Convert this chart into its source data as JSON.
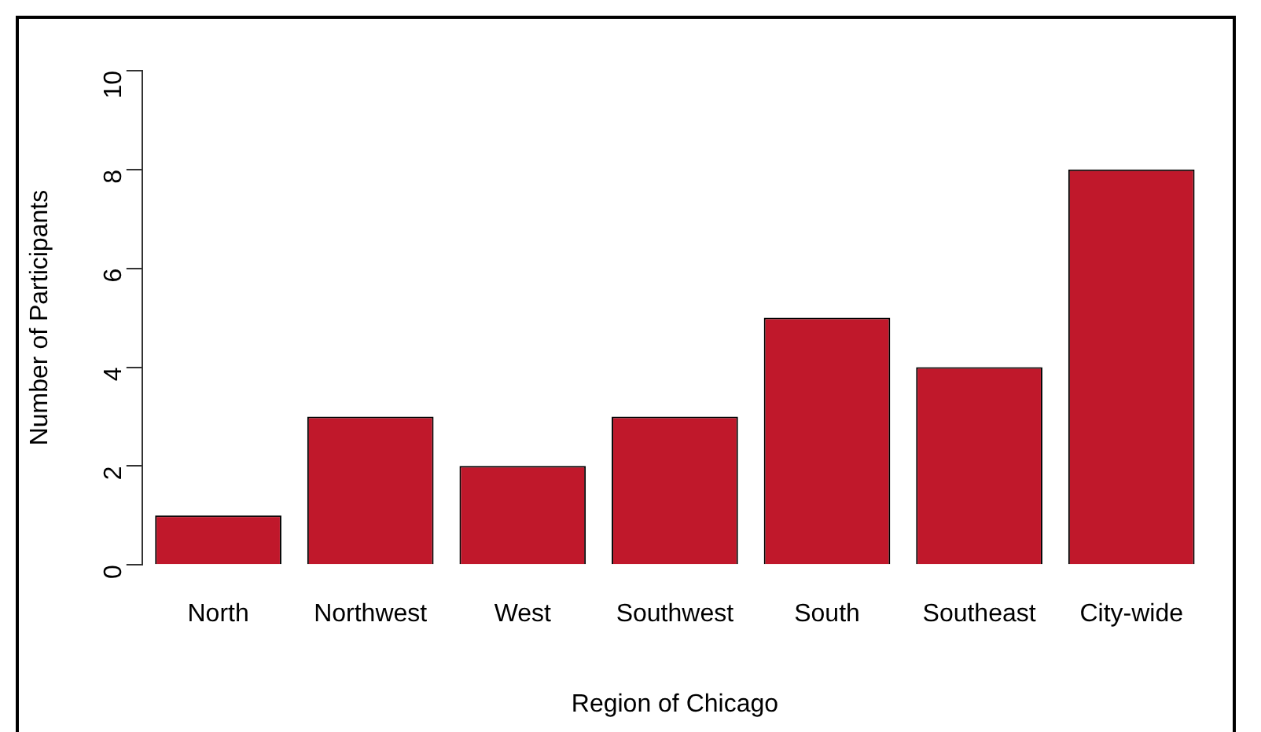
{
  "chart_data": {
    "type": "bar",
    "xlabel": "Region of Chicago",
    "ylabel": "Number of Participants",
    "categories": [
      "North",
      "Northwest",
      "West",
      "Southwest",
      "South",
      "Southeast",
      "City-wide"
    ],
    "values": [
      1,
      3,
      2,
      3,
      5,
      4,
      8
    ],
    "color": "#c0182b",
    "ylim": [
      0,
      10
    ],
    "yticks": [
      0,
      2,
      4,
      6,
      8,
      10
    ],
    "grid": false,
    "legend": false
  }
}
